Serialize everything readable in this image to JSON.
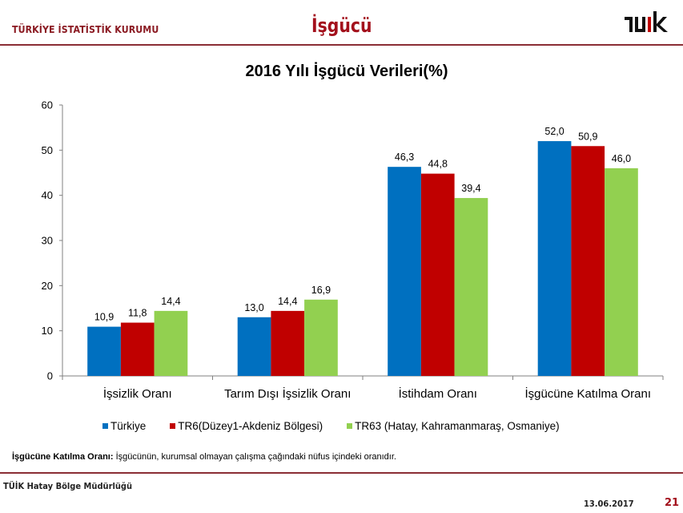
{
  "header": {
    "organization": "TÜRKİYE İSTATİSTİK KURUMU",
    "title": "İşgücü",
    "logo_text": "TÜİK"
  },
  "colors": {
    "brand": "#8B1A22",
    "title_red": "#A3101C",
    "rule": "#8B2E35"
  },
  "chart_data": {
    "type": "bar",
    "title": "2016 Yılı İşgücü Verileri(%)",
    "xlabel": "",
    "ylabel": "",
    "ylim": [
      0,
      60
    ],
    "yticks": [
      0,
      10,
      20,
      30,
      40,
      50,
      60
    ],
    "grid": false,
    "legend_position": "bottom",
    "categories": [
      "İşsizlik Oranı",
      "Tarım Dışı İşsizlik Oranı",
      "İstihdam Oranı",
      "İşgücüne Katılma Oranı"
    ],
    "series": [
      {
        "name": "Türkiye",
        "color": "#0070C0",
        "values": [
          10.9,
          13.0,
          46.3,
          52.0
        ],
        "labels": [
          "10,9",
          "13,0",
          "46,3",
          "52,0"
        ]
      },
      {
        "name": "TR6(Düzey1-Akdeniz Bölgesi)",
        "color": "#C00000",
        "values": [
          11.8,
          14.4,
          44.8,
          50.9
        ],
        "labels": [
          "11,8",
          "14,4",
          "44,8",
          "50,9"
        ]
      },
      {
        "name": "TR63 (Hatay, Kahramanmaraş, Osmaniye)",
        "color": "#92D050",
        "values": [
          14.4,
          16.9,
          39.4,
          46.0
        ],
        "labels": [
          "14,4",
          "16,9",
          "39,4",
          "46,0"
        ]
      }
    ]
  },
  "note": {
    "term": "İşgücüne Katılma Oranı:",
    "definition": " İşgücünün, kurumsal olmayan çalışma çağındaki nüfus içindeki oranıdır."
  },
  "footer": {
    "organization": "TÜİK Hatay Bölge Müdürlüğü",
    "date": "13.06.2017",
    "page": "21"
  }
}
